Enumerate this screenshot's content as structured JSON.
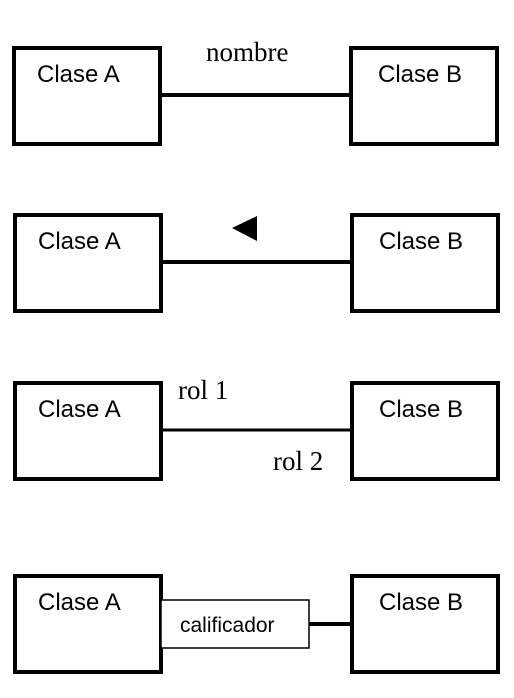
{
  "diagrams": [
    {
      "kind": "named-association",
      "class_a": "Clase A",
      "class_b": "Clase B",
      "label": "nombre"
    },
    {
      "kind": "directed-association",
      "class_a": "Clase A",
      "class_b": "Clase B",
      "direction_icon": "left-triangle-arrow-icon"
    },
    {
      "kind": "role-association",
      "class_a": "Clase A",
      "class_b": "Clase B",
      "role_1": "rol 1",
      "role_2": "rol 2"
    },
    {
      "kind": "qualified-association",
      "class_a": "Clase A",
      "class_b": "Clase B",
      "qualifier": "calificador"
    }
  ]
}
